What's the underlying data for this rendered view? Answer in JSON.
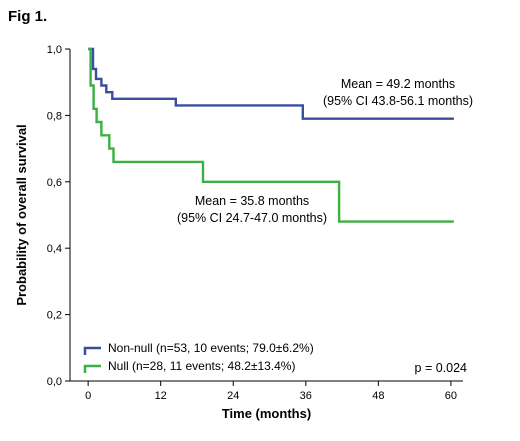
{
  "figure_label": "Fig 1.",
  "chart_data": {
    "type": "line",
    "step": true,
    "xlabel": "Time (months)",
    "ylabel": "Probability of overall survival",
    "xlim": [
      -3,
      62
    ],
    "ylim": [
      0,
      1.0
    ],
    "x_ticks": [
      0,
      12,
      24,
      36,
      48,
      60
    ],
    "y_ticks": [
      {
        "value": 0.0,
        "label": "0,0"
      },
      {
        "value": 0.2,
        "label": "0,2"
      },
      {
        "value": 0.4,
        "label": "0,4"
      },
      {
        "value": 0.6,
        "label": "0,6"
      },
      {
        "value": 0.8,
        "label": "0,8"
      },
      {
        "value": 1.0,
        "label": "1,0"
      }
    ],
    "grid": false,
    "legend_position": "bottom-left",
    "series": [
      {
        "name": "Non-null (n=53, 10 events; 79.0±6.2%)",
        "color": "#3a4ea0",
        "points": [
          [
            0,
            1.0
          ],
          [
            0.8,
            1.0
          ],
          [
            0.8,
            0.94
          ],
          [
            1.3,
            0.94
          ],
          [
            1.3,
            0.91
          ],
          [
            2.2,
            0.91
          ],
          [
            2.2,
            0.89
          ],
          [
            3.0,
            0.89
          ],
          [
            3.0,
            0.87
          ],
          [
            4.0,
            0.87
          ],
          [
            4.0,
            0.85
          ],
          [
            14.5,
            0.85
          ],
          [
            14.5,
            0.83
          ],
          [
            35.5,
            0.83
          ],
          [
            35.5,
            0.79
          ],
          [
            60.5,
            0.79
          ]
        ]
      },
      {
        "name": "Null (n=28, 11 events; 48.2±13.4%)",
        "color": "#3cb043",
        "points": [
          [
            0,
            1.0
          ],
          [
            0.4,
            1.0
          ],
          [
            0.4,
            0.89
          ],
          [
            0.9,
            0.89
          ],
          [
            0.9,
            0.82
          ],
          [
            1.4,
            0.82
          ],
          [
            1.4,
            0.78
          ],
          [
            2.2,
            0.78
          ],
          [
            2.2,
            0.74
          ],
          [
            3.5,
            0.74
          ],
          [
            3.5,
            0.7
          ],
          [
            4.2,
            0.7
          ],
          [
            4.2,
            0.66
          ],
          [
            19.0,
            0.66
          ],
          [
            19.0,
            0.6
          ],
          [
            41.5,
            0.6
          ],
          [
            41.5,
            0.48
          ],
          [
            60.5,
            0.48
          ]
        ]
      }
    ],
    "annotations": [
      {
        "line1": "Mean = 49.2 months",
        "line2": "(95% CI 43.8-56.1 months)"
      },
      {
        "line1": "Mean = 35.8 months",
        "line2": "(95% CI 24.7-47.0 months)"
      }
    ],
    "p_value": "p = 0.024"
  }
}
